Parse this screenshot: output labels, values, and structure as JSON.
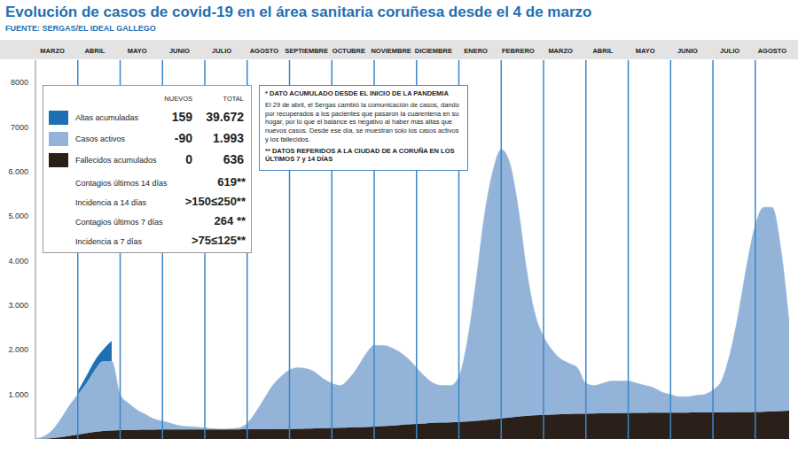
{
  "chart_data": {
    "type": "area",
    "title": "Evolución de casos de covid-19 en el área sanitaria coruñesa desde el 4 de marzo",
    "subtitle": "FUENTE: SERGAS/EL IDEAL GALLEGO",
    "stacked": true,
    "grid": false,
    "categories": [
      null,
      null,
      "MARZO",
      null,
      null,
      null,
      null,
      "ABRIL",
      null,
      null,
      null,
      null,
      "MAYO",
      null,
      null,
      null,
      null,
      "JUNIO",
      null,
      null,
      null,
      null,
      "JULIO",
      null,
      null,
      null,
      null,
      "AGOSTO",
      null,
      null,
      null,
      null,
      "SEPTIEMBRE",
      null,
      null,
      null,
      null,
      "OCTUBRE",
      null,
      null,
      null,
      null,
      "NOVIEMBRE",
      null,
      null,
      null,
      null,
      "DICIEMBRE",
      null,
      null,
      null,
      null,
      "ENERO",
      null,
      null,
      null,
      null,
      "FEBRERO",
      null,
      null,
      null,
      null,
      "MARZO",
      null,
      null,
      null,
      null,
      "ABRIL",
      null,
      null,
      null,
      null,
      "MAYO",
      null,
      null,
      null,
      null,
      "JUNIO",
      null,
      null,
      null,
      null,
      "JULIO",
      null,
      null,
      null,
      null,
      "AGOSTO",
      null,
      null
    ],
    "ylim": [
      0,
      8500
    ],
    "yticks": [
      {
        "value": 1000,
        "label": "1.000"
      },
      {
        "value": 2000,
        "label": "2.000"
      },
      {
        "value": 3000,
        "label": "3.000"
      },
      {
        "value": 4000,
        "label": "4.000"
      },
      {
        "value": 5000,
        "label": "5.000"
      },
      {
        "value": 6000,
        "label": "6.000"
      },
      7000,
      8000
    ],
    "table_headers": [
      "NUEVOS",
      "TOTAL"
    ],
    "series": [
      {
        "name": "Altas acumuladas",
        "color": "#1f6fb5",
        "new": "159",
        "total": "39.672",
        "values": [
          null,
          null,
          null,
          null,
          null,
          60,
          150,
          200,
          250,
          450,
          null,
          null,
          null,
          null,
          null,
          null,
          null,
          null,
          null,
          null,
          null,
          null,
          null,
          null,
          null,
          null,
          null,
          null,
          null,
          null,
          null,
          null,
          null,
          null,
          null,
          null,
          null,
          null,
          null,
          null,
          null,
          null,
          null,
          null,
          null,
          null,
          null,
          null,
          null,
          null,
          null,
          null,
          null,
          null,
          null,
          null,
          null,
          null,
          null,
          null,
          null,
          null,
          null,
          null,
          null,
          null,
          null,
          null,
          null,
          null,
          null,
          null,
          null,
          null,
          null,
          null,
          null,
          null,
          null,
          null,
          null,
          null,
          null,
          null,
          null,
          null,
          null,
          null,
          null,
          null
        ]
      },
      {
        "name": "Casos activos",
        "color": "#93b4d8",
        "new": "-90",
        "total": "1.993",
        "values": [
          10,
          55,
          180,
          410,
          680,
          900,
          1120,
          1390,
          1570,
          1560,
          800,
          600,
          445,
          340,
          240,
          188,
          138,
          87,
          67,
          56,
          36,
          16,
          5,
          15,
          35,
          134,
          383,
          682,
          980,
          1178,
          1325,
          1370,
          1345,
          1260,
          1105,
          1000,
          945,
          1090,
          1335,
          1630,
          1820,
          1810,
          1750,
          1635,
          1470,
          1260,
          1050,
          890,
          835,
          830,
          1020,
          1810,
          3095,
          4580,
          5560,
          6040,
          5720,
          4700,
          3285,
          2270,
          1760,
          1452,
          1245,
          1140,
          1035,
          682,
          629,
          676,
          723,
          720,
          717,
          665,
          613,
          561,
          460,
          409,
          358,
          357,
          386,
          405,
          504,
          703,
          1302,
          2201,
          3300,
          4195,
          4588,
          4580,
          3672,
          1993
        ]
      },
      {
        "name": "Fallecidos acumulados",
        "color": "#2a2019",
        "new": "0",
        "total": "636",
        "values": [
          0,
          5,
          20,
          40,
          70,
          100,
          130,
          160,
          180,
          190,
          200,
          200,
          205,
          210,
          210,
          212,
          212,
          213,
          213,
          214,
          214,
          214,
          215,
          215,
          215,
          216,
          217,
          218,
          220,
          222,
          225,
          230,
          235,
          240,
          245,
          250,
          255,
          260,
          265,
          270,
          280,
          290,
          300,
          315,
          330,
          340,
          350,
          360,
          365,
          370,
          380,
          390,
          405,
          420,
          440,
          460,
          480,
          500,
          515,
          530,
          540,
          548,
          555,
          560,
          565,
          568,
          571,
          574,
          577,
          580,
          583,
          585,
          587,
          589,
          590,
          591,
          592,
          593,
          594,
          595,
          596,
          597,
          598,
          599,
          600,
          605,
          612,
          620,
          628,
          636
        ]
      }
    ],
    "indicators": [
      {
        "label": "Contagios últimos 14 días",
        "value": "619**"
      },
      {
        "label": "Incidencia a 14 días",
        "value": ">150≤250**"
      },
      {
        "label": "Contagios últimos 7 días",
        "value": "264 **"
      },
      {
        "label": "Incidencia a 7 días",
        "value": ">75≤125**"
      }
    ],
    "annotations": [
      "* DATO ACUMULADO DESDE EL INICIO DE LA PANDEMIA",
      "El 29 de abril, el Sergas cambió la comunicación de casos, dando por recuperados a los pacientes que pasaron la cuarentena en su hogar, por lo que el balance es negativo al haber más altas que nuevos casos. Desde ese día, se muestran solo los casos activos y los fallecidos.",
      "** DATOS REFERIDOS A LA CIUDAD DE A CORUÑA EN LOS ÚLTIMOS 7 y 14 DÍAS"
    ]
  }
}
